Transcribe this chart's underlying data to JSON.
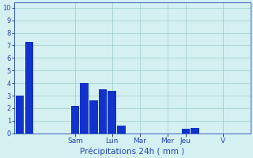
{
  "bar_positions": [
    0,
    1,
    6,
    7,
    8,
    9,
    10,
    11,
    18,
    19
  ],
  "bar_heights": [
    3.0,
    7.3,
    2.2,
    4.0,
    2.6,
    3.5,
    3.4,
    0.6,
    0.35,
    0.45
  ],
  "bar_color": "#1133cc",
  "bg_color": "#d5f0f0",
  "grid_color": "#99cccc",
  "axis_color": "#2244bb",
  "xlabel": "Précipitations 24h ( mm )",
  "xlabel_color": "#2244bb",
  "yticks": [
    0,
    1,
    2,
    3,
    4,
    5,
    6,
    7,
    8,
    9,
    10
  ],
  "ylim": [
    0,
    10.4
  ],
  "day_labels": [
    "Sam",
    "Lun",
    "Mar",
    "Mer",
    "Jeu",
    "V"
  ],
  "day_tick_positions": [
    6,
    10,
    13,
    16,
    18,
    22
  ],
  "xlim": [
    -0.6,
    25
  ],
  "bar_width": 0.9,
  "ytick_fontsize": 6,
  "xtick_fontsize": 6.5,
  "xlabel_fontsize": 7.5
}
